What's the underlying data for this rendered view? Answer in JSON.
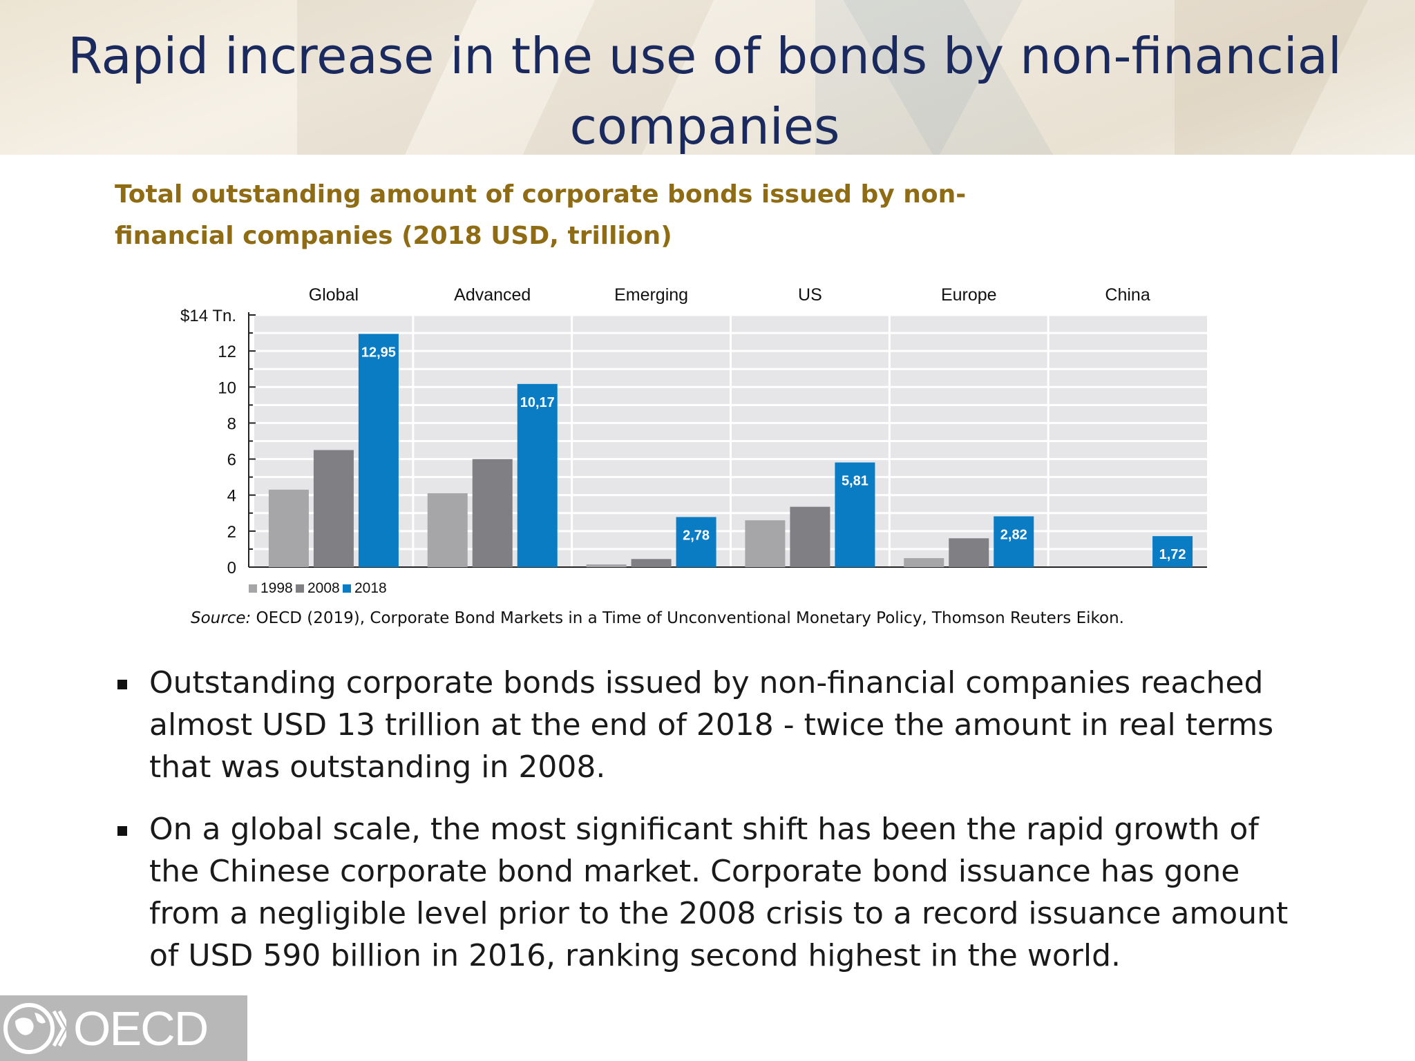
{
  "slide": {
    "title": "Rapid increase in the use of bonds by non-financial companies"
  },
  "chart_title": "Total outstanding amount of corporate bonds issued by non-financial companies (2018 USD, trillion)",
  "chart_data": {
    "type": "bar",
    "title": "Total outstanding amount of corporate bonds issued by non-financial companies (2018 USD, trillion)",
    "categories": [
      "Global",
      "Advanced",
      "Emerging",
      "US",
      "Europe",
      "China"
    ],
    "series": [
      {
        "name": "1998",
        "values": [
          4.3,
          4.1,
          0.15,
          2.6,
          0.5,
          0
        ],
        "color": "#a6a5a8"
      },
      {
        "name": "2008",
        "values": [
          6.5,
          6.0,
          0.45,
          3.35,
          1.6,
          0
        ],
        "color": "#807f83"
      },
      {
        "name": "2018",
        "values": [
          12.95,
          10.17,
          2.78,
          5.81,
          2.82,
          1.72
        ],
        "color": "#0a7cc4"
      }
    ],
    "data_labels": [
      "12,95",
      "10,17",
      "2,78",
      "5,81",
      "2,82",
      "1,72"
    ],
    "yticks": [
      "0",
      "2",
      "4",
      "6",
      "8",
      "10",
      "12",
      "$14 Tn."
    ],
    "ylim": [
      0,
      14
    ],
    "legend_position": "bottom-left",
    "grid": true
  },
  "source": {
    "label": "Source:",
    "text": " OECD (2019), Corporate Bond Markets in a Time of Unconventional Monetary Policy, Thomson Reuters Eikon."
  },
  "bullets": [
    "Outstanding corporate bonds issued by non-financial companies reached almost USD 13 trillion at the end of 2018 - twice the amount in real terms that was outstanding in 2008.",
    "On a global scale, the most significant shift has been the rapid growth of the Chinese corporate bond market. Corporate bond issuance has gone from a negligible level prior to the 2008 crisis to a record issuance amount of USD 590 billion in 2016, ranking second highest in the world."
  ],
  "logo": {
    "text": "OECD"
  },
  "colors": {
    "title": "#1b2a5e",
    "subtitle": "#8f6b14",
    "plot_bg": "#e6e6e8"
  }
}
